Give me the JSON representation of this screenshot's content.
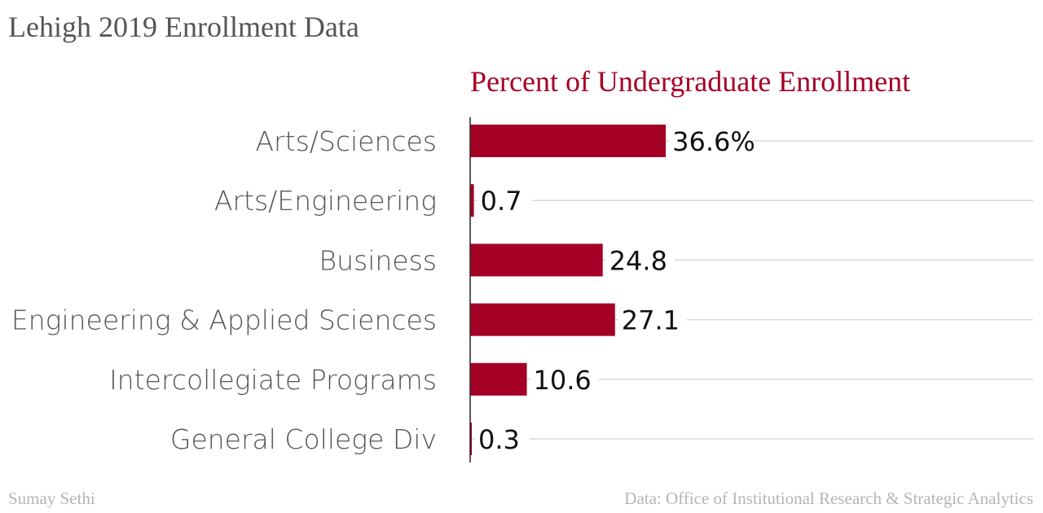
{
  "header": {
    "title": "Lehigh 2019 Enrollment Data"
  },
  "footer": {
    "credit": "Sumay Sethi",
    "source": "Data: Office of Institutional Research & Strategic Analytics"
  },
  "chart_data": {
    "type": "bar",
    "orientation": "horizontal",
    "title": "Percent of Undergraduate Enrollment",
    "categories": [
      "Arts/Sciences",
      "Arts/Engineering",
      "Business",
      "Engineering & Applied Sciences",
      "Intercollegiate Programs",
      "General College Div"
    ],
    "values": [
      36.6,
      0.7,
      24.8,
      27.1,
      10.6,
      0.3
    ],
    "value_labels": [
      "36.6%",
      "0.7",
      "24.8",
      "27.1",
      "10.6",
      "0.3"
    ],
    "xlim": [
      0,
      100
    ],
    "grid": true,
    "legend": "none",
    "colors": {
      "bar": "#a50026",
      "title": "#a50026",
      "gridline": "#d9d9d9",
      "axis": "#222222",
      "category_text": "#555555",
      "value_text": "#111111"
    }
  }
}
